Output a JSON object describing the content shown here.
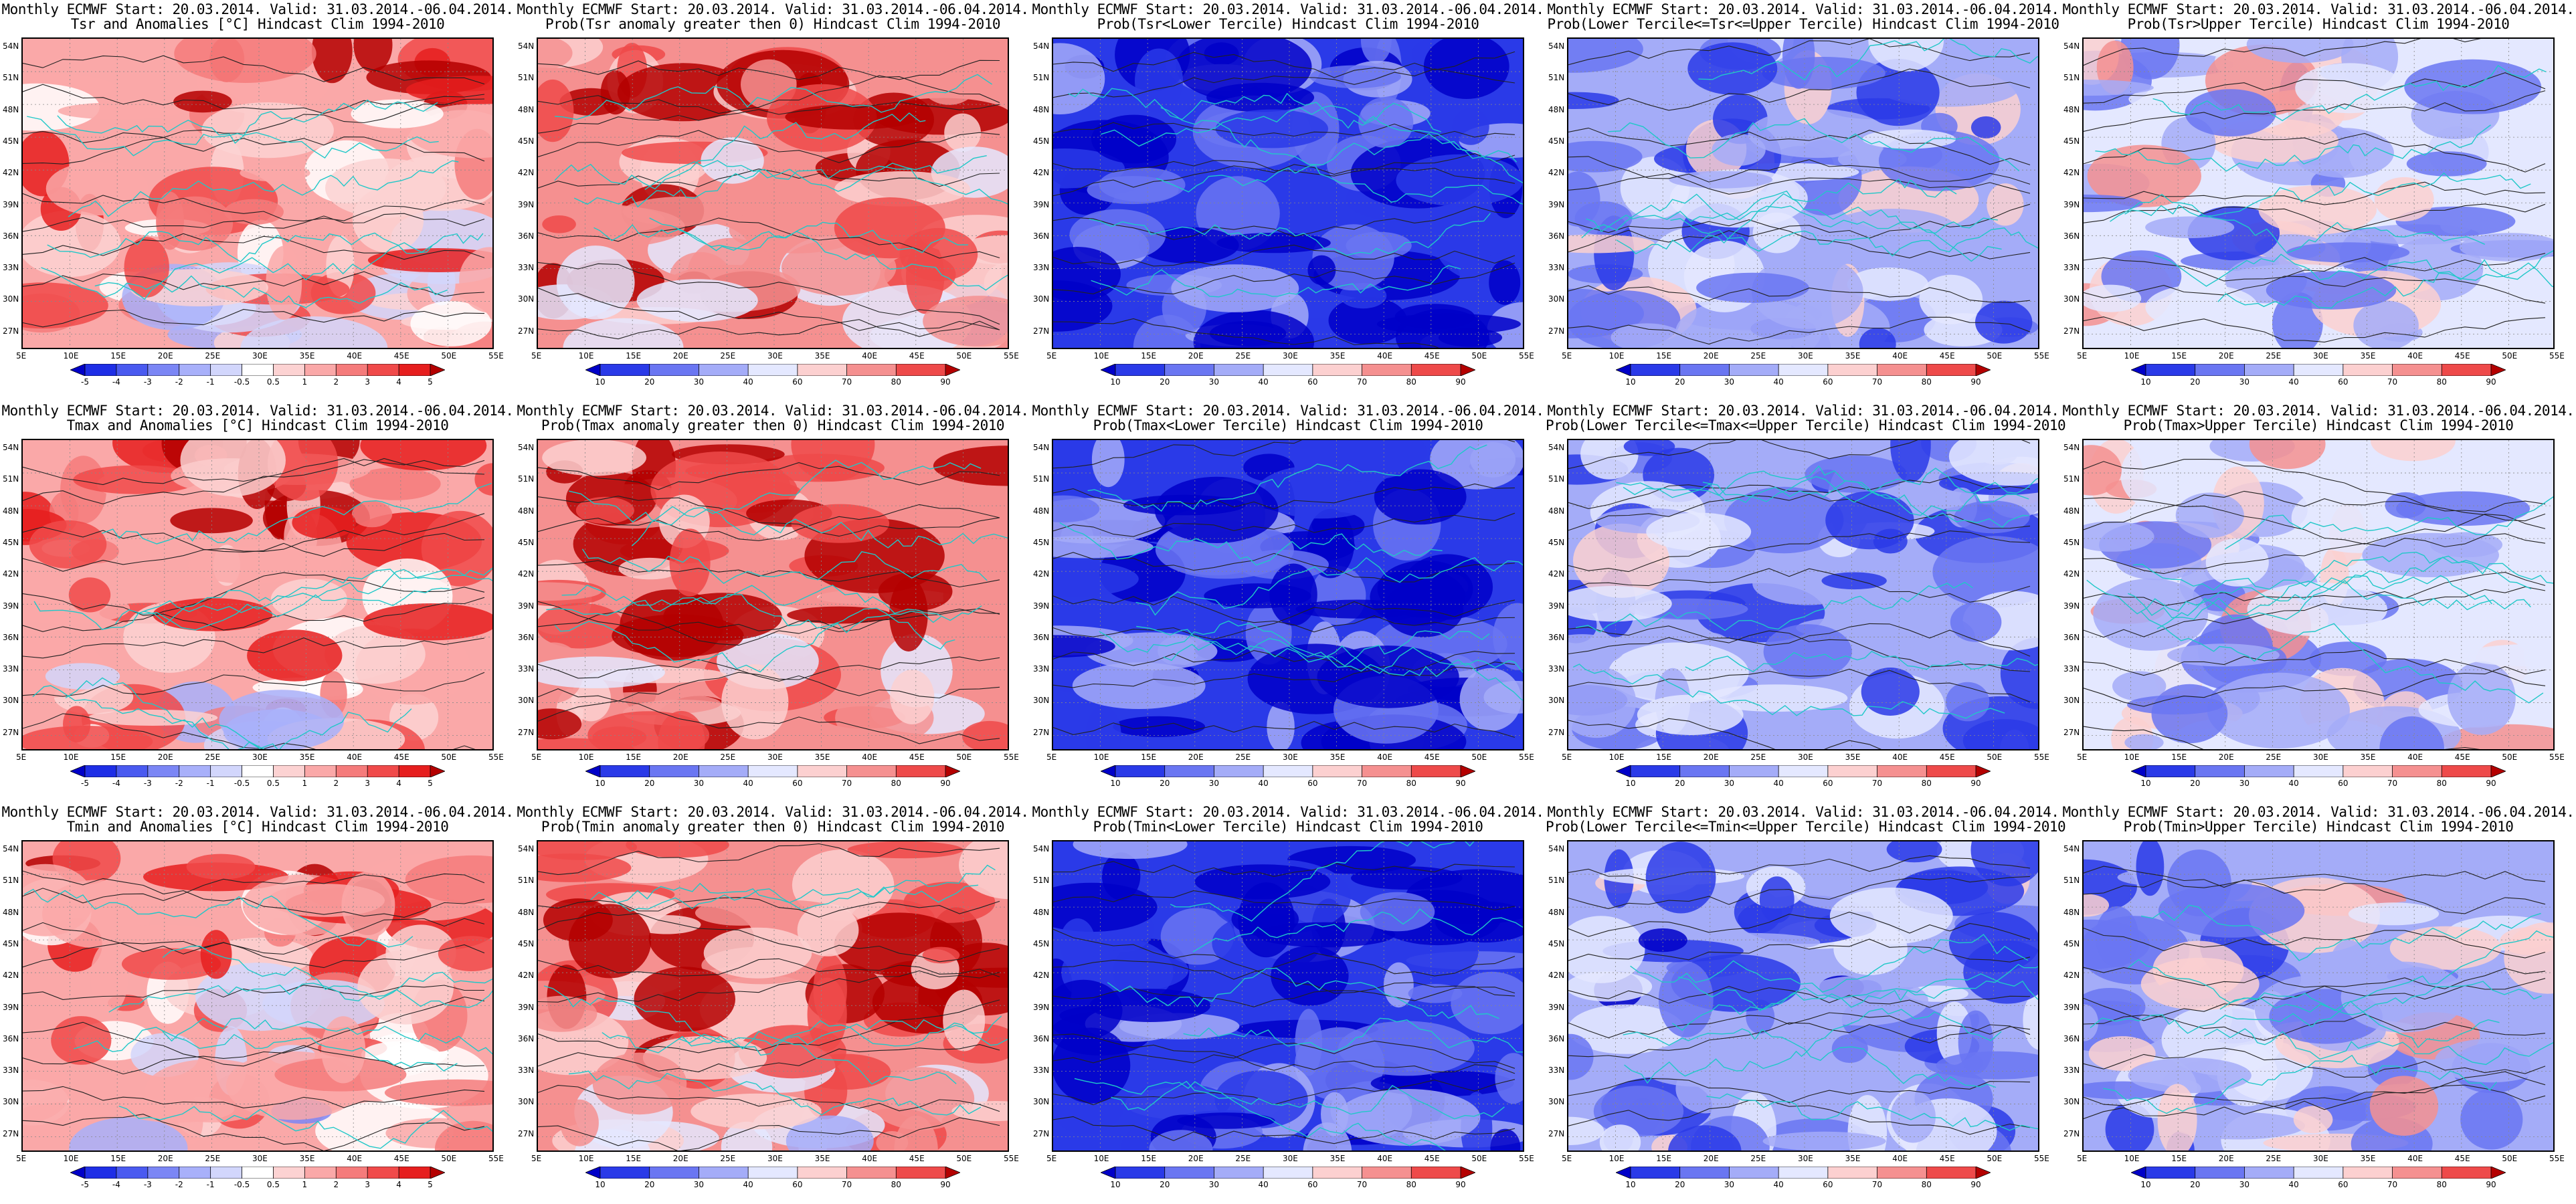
{
  "figure": {
    "header": "Monthly ECMWF Start: 20.03.2014. Valid: 31.03.2014.-06.04.2014.",
    "lat_labels": [
      "54N",
      "51N",
      "48N",
      "45N",
      "42N",
      "39N",
      "36N",
      "33N",
      "30N",
      "27N"
    ],
    "lon_labels": [
      "5E",
      "10E",
      "15E",
      "20E",
      "25E",
      "30E",
      "35E",
      "40E",
      "45E",
      "50E",
      "55E"
    ],
    "anomaly_colorbar": {
      "labels": [
        "-5",
        "-4",
        "-3",
        "-2",
        "-1",
        "-0.5",
        "0.5",
        "1",
        "2",
        "3",
        "4",
        "5"
      ],
      "colors": [
        "#0000c8",
        "#1e2ee6",
        "#4a5af0",
        "#7b86f5",
        "#a8b0fa",
        "#d2d6fc",
        "#ffffff",
        "#fcd2d2",
        "#faa8a8",
        "#f57b7b",
        "#f04a4a",
        "#e61e1e",
        "#b40000"
      ]
    },
    "probability_colorbar": {
      "labels": [
        "10",
        "20",
        "30",
        "40",
        "60",
        "70",
        "80",
        "90"
      ],
      "colors": [
        "#0000c8",
        "#2a3ae8",
        "#6a76f2",
        "#a4acf8",
        "#e4e8ff",
        "#fcd0d0",
        "#f59090",
        "#ee4a4a",
        "#b40000"
      ]
    },
    "rows": [
      {
        "variable": "Tsr",
        "panels": [
          {
            "subtitle": "Tsr and Anomalies [°C] Hindcast Clim 1994-2010",
            "kind": "anomaly",
            "bias": 0.35
          },
          {
            "subtitle": "Prob(Tsr anomaly greater then 0) Hindcast Clim 1994-2010",
            "kind": "prob",
            "bias": 0.55
          },
          {
            "subtitle": "Prob(Tsr<Lower Tercile) Hindcast Clim 1994-2010",
            "kind": "prob",
            "bias": -0.75
          },
          {
            "subtitle": "Prob(Lower Tercile<=Tsr<=Upper Tercile) Hindcast Clim 1994-2010",
            "kind": "prob",
            "bias": -0.3
          },
          {
            "subtitle": "Prob(Tsr>Upper Tercile) Hindcast Clim 1994-2010",
            "kind": "prob",
            "bias": -0.1
          }
        ]
      },
      {
        "variable": "Tmax",
        "panels": [
          {
            "subtitle": "Tmax and Anomalies [°C] Hindcast Clim 1994-2010",
            "kind": "anomaly",
            "bias": 0.4
          },
          {
            "subtitle": "Prob(Tmax anomaly greater then 0) Hindcast Clim 1994-2010",
            "kind": "prob",
            "bias": 0.6
          },
          {
            "subtitle": "Prob(Tmax<Lower Tercile) Hindcast Clim 1994-2010",
            "kind": "prob",
            "bias": -0.75
          },
          {
            "subtitle": "Prob(Lower Tercile<=Tmax<=Upper Tercile) Hindcast Clim 1994-2010",
            "kind": "prob",
            "bias": -0.3
          },
          {
            "subtitle": "Prob(Tmax>Upper Tercile) Hindcast Clim 1994-2010",
            "kind": "prob",
            "bias": 0.0
          }
        ]
      },
      {
        "variable": "Tmin",
        "panels": [
          {
            "subtitle": "Tmin and Anomalies [°C] Hindcast Clim 1994-2010",
            "kind": "anomaly",
            "bias": 0.25
          },
          {
            "subtitle": "Prob(Tmin anomaly greater then 0) Hindcast Clim 1994-2010",
            "kind": "prob",
            "bias": 0.45
          },
          {
            "subtitle": "Prob(Tmin<Lower Tercile) Hindcast Clim 1994-2010",
            "kind": "prob",
            "bias": -0.8
          },
          {
            "subtitle": "Prob(Lower Tercile<=Tmin<=Upper Tercile) Hindcast Clim 1994-2010",
            "kind": "prob",
            "bias": -0.35
          },
          {
            "subtitle": "Prob(Tmin>Upper Tercile) Hindcast Clim 1994-2010",
            "kind": "prob",
            "bias": -0.15
          }
        ]
      }
    ]
  }
}
